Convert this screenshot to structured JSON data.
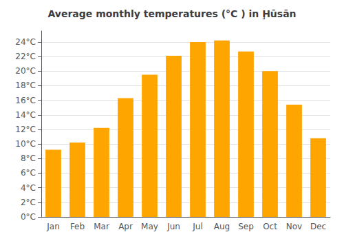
{
  "chart_data": {
    "type": "bar",
    "title": "Average monthly temperatures (°C ) in Ḩūsān",
    "categories": [
      "Jan",
      "Feb",
      "Mar",
      "Apr",
      "May",
      "Jun",
      "Jul",
      "Aug",
      "Sep",
      "Oct",
      "Nov",
      "Dec"
    ],
    "values": [
      9.2,
      10.2,
      12.2,
      16.3,
      19.5,
      22.1,
      24.0,
      24.2,
      22.7,
      20.0,
      15.4,
      10.8
    ],
    "color": "#FFA500",
    "ylim": [
      0,
      25.5
    ],
    "yticks": [
      {
        "value": 0,
        "label": "0°C"
      },
      {
        "value": 2,
        "label": "2°C"
      },
      {
        "value": 4,
        "label": "4°C"
      },
      {
        "value": 6,
        "label": "6°C"
      },
      {
        "value": 8,
        "label": "8°C"
      },
      {
        "value": 10,
        "label": "10°C"
      },
      {
        "value": 12,
        "label": "12°C"
      },
      {
        "value": 14,
        "label": "14°C"
      },
      {
        "value": 16,
        "label": "16°C"
      },
      {
        "value": 18,
        "label": "18°C"
      },
      {
        "value": 20,
        "label": "20°C"
      },
      {
        "value": 22,
        "label": "22°C"
      },
      {
        "value": 24,
        "label": "24°C"
      }
    ],
    "grid": true
  }
}
